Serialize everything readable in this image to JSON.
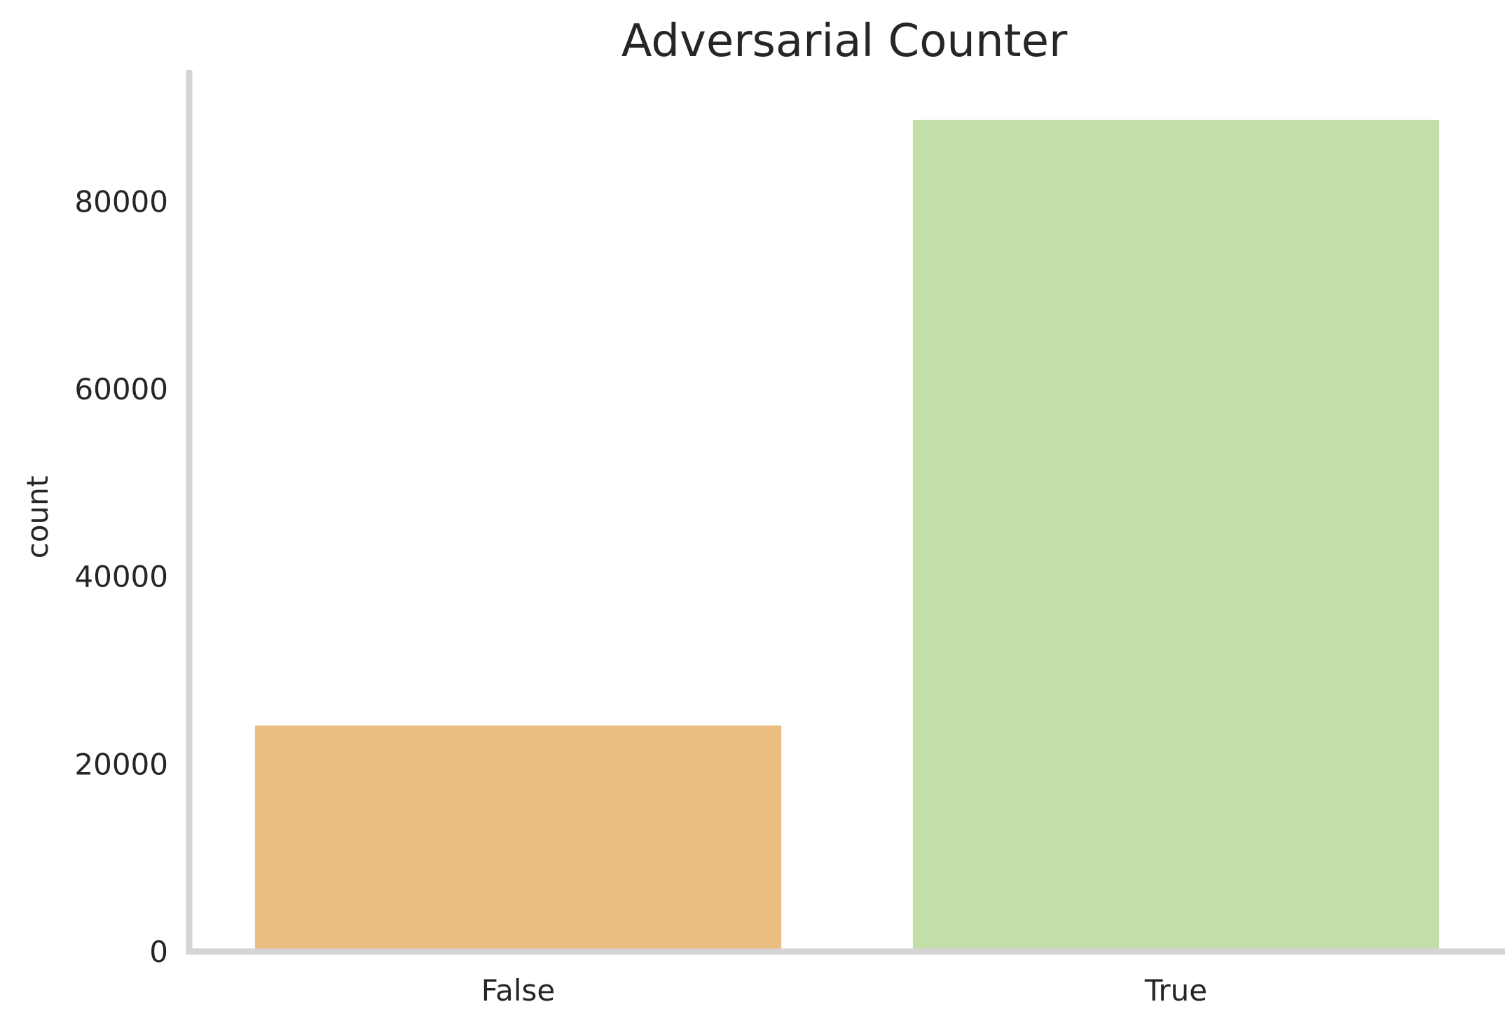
{
  "chart_data": {
    "type": "bar",
    "title": "Adversarial Counter",
    "xlabel": "",
    "ylabel": "count",
    "categories": [
      "False",
      "True"
    ],
    "values": [
      24100,
      88700
    ],
    "colors": [
      "#eabd81",
      "#c2dea9"
    ],
    "axis_color": "#d4d4d4",
    "ylim": [
      0,
      94000
    ],
    "yticks": [
      0,
      20000,
      40000,
      60000,
      80000
    ],
    "grid": false,
    "legend": "none"
  }
}
